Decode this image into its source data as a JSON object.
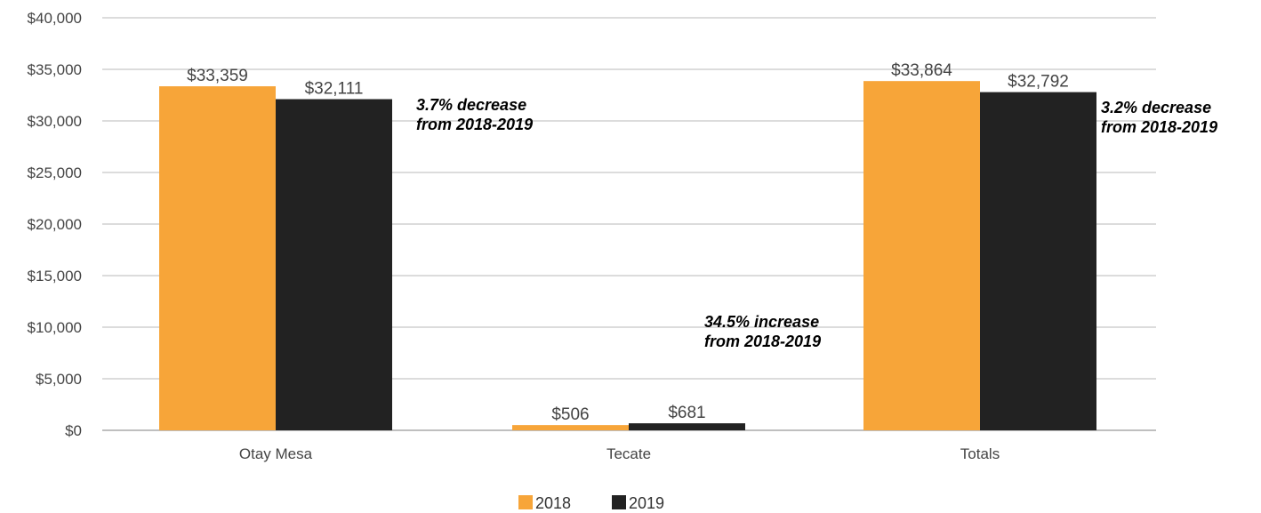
{
  "chart_data": {
    "type": "bar",
    "categories": [
      "Otay Mesa",
      "Tecate",
      "Totals"
    ],
    "series": [
      {
        "name": "2018",
        "values": [
          33359,
          506,
          33864
        ],
        "labels": [
          "$33,359",
          "$506",
          "$33,864"
        ],
        "color": "#f7a539"
      },
      {
        "name": "2019",
        "values": [
          32111,
          681,
          32792
        ],
        "labels": [
          "$32,111",
          "$681",
          "$32,792"
        ],
        "color": "#222222"
      }
    ],
    "ylim": [
      0,
      40000
    ],
    "yticks": [
      0,
      5000,
      10000,
      15000,
      20000,
      25000,
      30000,
      35000,
      40000
    ],
    "ytick_labels": [
      "$0",
      "$5,000",
      "$10,000",
      "$15,000",
      "$20,000",
      "$25,000",
      "$30,000",
      "$35,000",
      "$40,000"
    ],
    "grid": true,
    "legend_position": "bottom-center",
    "annotations": [
      {
        "lines": [
          "3.7% decrease",
          "from 2018-2019"
        ],
        "category": "Otay Mesa"
      },
      {
        "lines": [
          "34.5% increase",
          "from 2018-2019"
        ],
        "category": "Tecate"
      },
      {
        "lines": [
          "3.2% decrease",
          "from 2018-2019"
        ],
        "category": "Totals"
      }
    ]
  }
}
